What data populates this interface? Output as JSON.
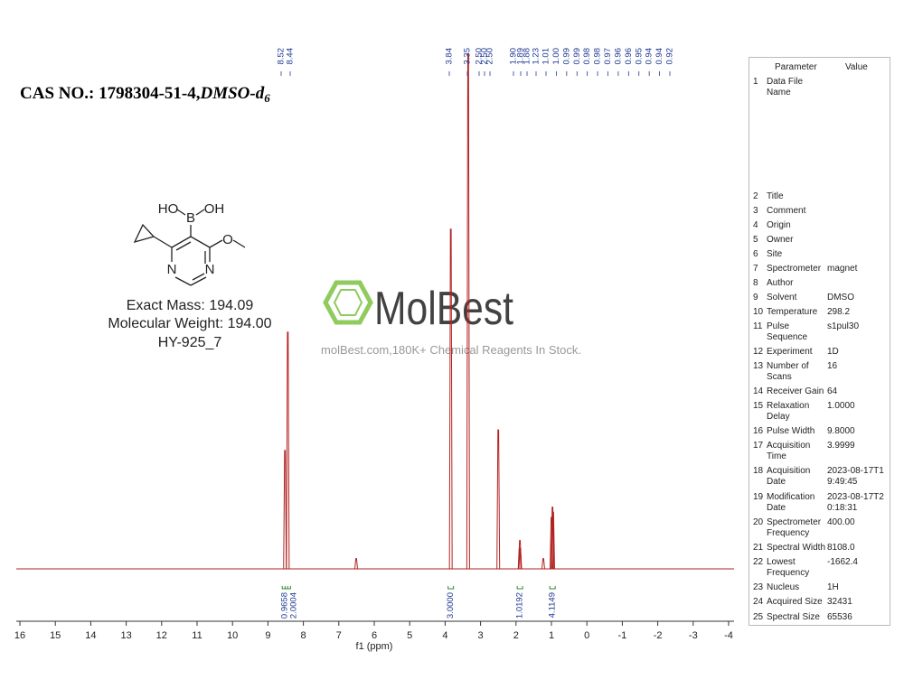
{
  "title": {
    "cas": "CAS NO.: 1798304-51-4,",
    "solvent": "DMSO-d",
    "solvent_sub": "6"
  },
  "structure": {
    "atoms": [
      "HO",
      "B",
      "OH",
      "N",
      "N",
      "O"
    ],
    "exact_mass": "Exact Mass: 194.09",
    "molecular_weight": "Molecular Weight: 194.00",
    "sample_id": "HY-925_7"
  },
  "watermark": {
    "brand": "MolBest",
    "slogan": "molBest.com,180K+ Chemical Reagents In Stock."
  },
  "chart_data": {
    "type": "nmr",
    "xlabel": "f1 (ppm)",
    "xlim": [
      16,
      -4
    ],
    "xticks": [
      16,
      15,
      14,
      13,
      12,
      11,
      10,
      9,
      8,
      7,
      6,
      5,
      4,
      3,
      2,
      1,
      0,
      -1,
      -2,
      -3,
      -4
    ],
    "ylim": [
      0,
      100
    ],
    "color": "#b22222",
    "x": [
      8.52,
      8.44,
      6.51,
      3.84,
      3.35,
      2.5,
      1.9,
      1.89,
      1.88,
      1.23,
      1.0,
      0.97,
      0.95
    ],
    "values": [
      23,
      46,
      2,
      66,
      100,
      27,
      4,
      5.5,
      4,
      2,
      10,
      12,
      11
    ],
    "peak_labels": [
      "8.52",
      "8.44",
      "3.84",
      "3.35",
      "2.50",
      "2.50",
      "2.50",
      "1.90",
      "1.89",
      "1.88",
      "1.23",
      "1.01",
      "1.00",
      "0.99",
      "0.99",
      "0.98",
      "0.98",
      "0.97",
      "0.96",
      "0.96",
      "0.95",
      "0.94",
      "0.94",
      "0.92"
    ],
    "integrals": [
      {
        "x": 8.52,
        "label": "0.9658"
      },
      {
        "x": 8.44,
        "label": "2.0004"
      },
      {
        "x": 3.84,
        "label": "3.0000"
      },
      {
        "x": 1.89,
        "label": "1.0192"
      },
      {
        "x": 0.97,
        "label": "4.1149"
      }
    ]
  },
  "parameters": {
    "header": [
      "Parameter",
      "Value"
    ],
    "rows": [
      {
        "n": 1,
        "param": "Data File Name"
      },
      {
        "n": 2,
        "param": "Title"
      },
      {
        "n": 3,
        "param": "Comment"
      },
      {
        "n": 4,
        "param": "Origin"
      },
      {
        "n": 5,
        "param": "Owner"
      },
      {
        "n": 6,
        "param": "Site"
      },
      {
        "n": 7,
        "param": "Spectrometer",
        "value": "magnet"
      },
      {
        "n": 8,
        "param": "Author"
      },
      {
        "n": 9,
        "param": "Solvent",
        "value": "DMSO"
      },
      {
        "n": 10,
        "param": "Temperature",
        "value": "298.2"
      },
      {
        "n": 11,
        "param": "Pulse Sequence",
        "value": "s1pul30"
      },
      {
        "n": 12,
        "param": "Experiment",
        "value": "1D"
      },
      {
        "n": 13,
        "param": "Number of Scans",
        "value": "16"
      },
      {
        "n": 14,
        "param": "Receiver Gain",
        "value": "64"
      },
      {
        "n": 15,
        "param": "Relaxation Delay",
        "value": "1.0000"
      },
      {
        "n": 16,
        "param": "Pulse Width",
        "value": "9.8000"
      },
      {
        "n": 17,
        "param": "Acquisition Time",
        "value": "3.9999"
      },
      {
        "n": 18,
        "param": "Acquisition Date",
        "value": "2023-08-17T19:49:45"
      },
      {
        "n": 19,
        "param": "Modification Date",
        "value": "2023-08-17T20:18:31"
      },
      {
        "n": 20,
        "param": "Spectrometer Frequency",
        "value": "400.00"
      },
      {
        "n": 21,
        "param": "Spectral Width",
        "value": "8108.0"
      },
      {
        "n": 22,
        "param": "Lowest Frequency",
        "value": "-1662.4"
      },
      {
        "n": 23,
        "param": "Nucleus",
        "value": "1H"
      },
      {
        "n": 24,
        "param": "Acquired Size",
        "value": "32431"
      },
      {
        "n": 25,
        "param": "Spectral Size",
        "value": "65536"
      }
    ]
  }
}
